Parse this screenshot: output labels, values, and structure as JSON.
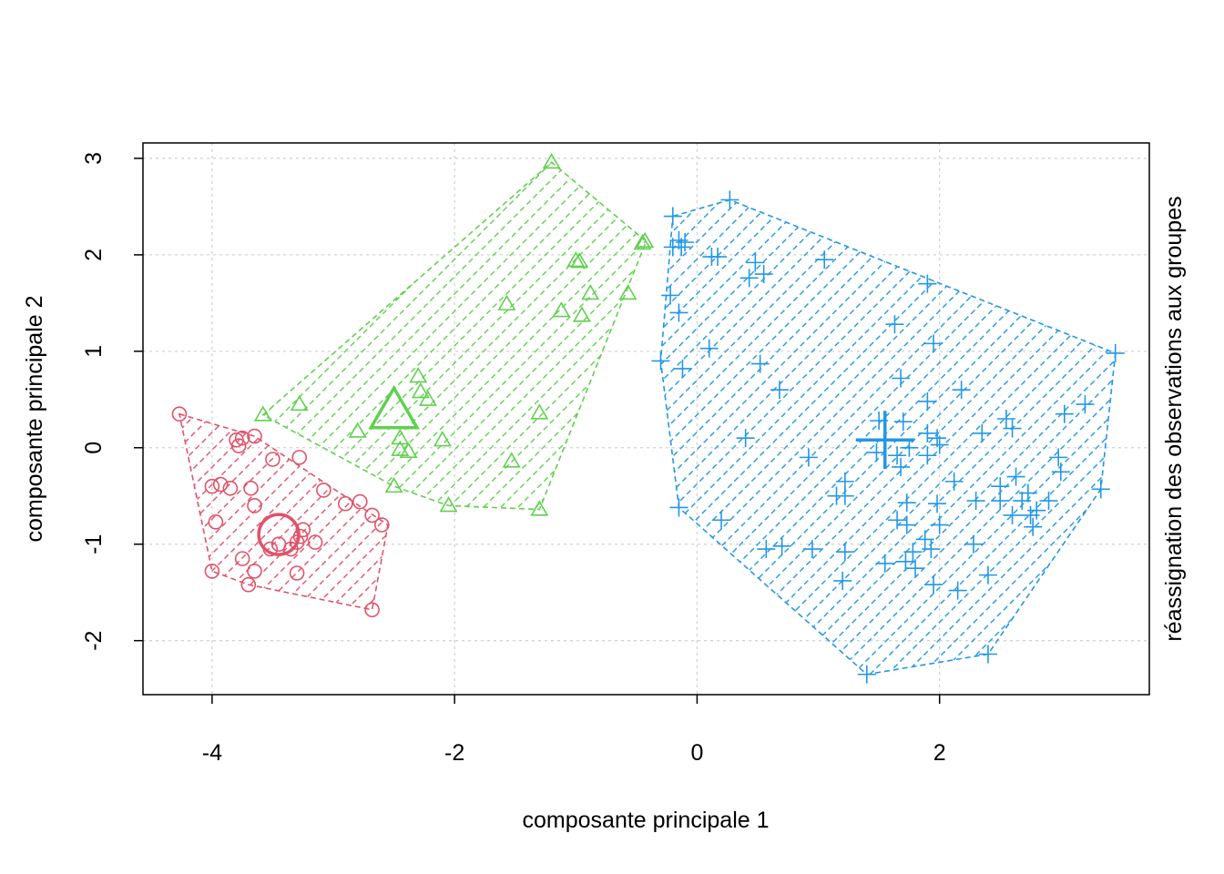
{
  "chart_data": {
    "type": "scatter",
    "title": "",
    "xlabel": "composante principale 1",
    "ylabel": "composante principale 2",
    "side_label": "réassignation des observations aux groupes",
    "xlim": [
      -4.57,
      3.73
    ],
    "ylim": [
      -2.56,
      3.16
    ],
    "xticks": [
      -4,
      -2,
      0,
      2
    ],
    "yticks": [
      -2,
      -1,
      0,
      1,
      2,
      3
    ],
    "xtick_labels": [
      "-4",
      "-2",
      "0",
      "2"
    ],
    "ytick_labels": [
      "-2",
      "-1",
      "0",
      "1",
      "2",
      "3"
    ],
    "grid": true,
    "series": [
      {
        "color": "#DF536B",
        "marker": "circle",
        "centroid": [
          -3.45,
          -0.9
        ],
        "hull": [
          [
            -4.27,
            0.35
          ],
          [
            -3.65,
            0.12
          ],
          [
            -2.55,
            -0.8
          ],
          [
            -2.68,
            -1.68
          ],
          [
            -3.7,
            -1.42
          ],
          [
            -4.0,
            -1.28
          ]
        ],
        "points": [
          [
            -4.27,
            0.35
          ],
          [
            -3.8,
            0.08
          ],
          [
            -3.75,
            0.1
          ],
          [
            -3.65,
            0.12
          ],
          [
            -3.78,
            0.02
          ],
          [
            -3.5,
            -0.12
          ],
          [
            -3.28,
            -0.1
          ],
          [
            -4.0,
            -0.4
          ],
          [
            -3.93,
            -0.38
          ],
          [
            -3.85,
            -0.42
          ],
          [
            -3.68,
            -0.42
          ],
          [
            -3.08,
            -0.44
          ],
          [
            -2.9,
            -0.58
          ],
          [
            -2.78,
            -0.56
          ],
          [
            -3.65,
            -0.6
          ],
          [
            -3.97,
            -0.77
          ],
          [
            -2.68,
            -0.7
          ],
          [
            -2.6,
            -0.8
          ],
          [
            -3.25,
            -0.85
          ],
          [
            -3.27,
            -0.92
          ],
          [
            -3.3,
            -0.98
          ],
          [
            -3.15,
            -0.98
          ],
          [
            -3.45,
            -1.0
          ],
          [
            -3.35,
            -1.05
          ],
          [
            -3.75,
            -1.15
          ],
          [
            -3.52,
            -1.05
          ],
          [
            -3.65,
            -1.28
          ],
          [
            -4.0,
            -1.28
          ],
          [
            -3.3,
            -1.3
          ],
          [
            -3.7,
            -1.42
          ],
          [
            -2.68,
            -1.68
          ]
        ]
      },
      {
        "color": "#61D04F",
        "marker": "triangle",
        "centroid": [
          -2.5,
          0.38
        ],
        "hull": [
          [
            -3.58,
            0.34
          ],
          [
            -1.2,
            2.96
          ],
          [
            -0.42,
            2.14
          ],
          [
            -1.3,
            -0.64
          ],
          [
            -2.05,
            -0.6
          ],
          [
            -2.5,
            -0.4
          ]
        ],
        "points": [
          [
            -1.2,
            2.96
          ],
          [
            -0.45,
            2.12
          ],
          [
            -0.43,
            2.14
          ],
          [
            -1.0,
            1.94
          ],
          [
            -0.97,
            1.93
          ],
          [
            -0.88,
            1.6
          ],
          [
            -0.57,
            1.6
          ],
          [
            -1.57,
            1.49
          ],
          [
            -1.12,
            1.42
          ],
          [
            -0.95,
            1.37
          ],
          [
            -2.3,
            0.74
          ],
          [
            -2.28,
            0.58
          ],
          [
            -2.22,
            0.5
          ],
          [
            -3.28,
            0.45
          ],
          [
            -3.58,
            0.34
          ],
          [
            -1.3,
            0.36
          ],
          [
            -2.8,
            0.17
          ],
          [
            -2.45,
            0.1
          ],
          [
            -2.1,
            0.08
          ],
          [
            -2.45,
            -0.02
          ],
          [
            -2.38,
            -0.04
          ],
          [
            -1.53,
            -0.14
          ],
          [
            -2.5,
            -0.4
          ],
          [
            -2.05,
            -0.6
          ],
          [
            -1.3,
            -0.64
          ]
        ]
      },
      {
        "color": "#2297E6",
        "marker": "plus",
        "centroid": [
          1.55,
          0.08
        ],
        "hull": [
          [
            -0.2,
            2.4
          ],
          [
            0.27,
            2.57
          ],
          [
            3.45,
            0.98
          ],
          [
            3.33,
            -0.43
          ],
          [
            2.4,
            -2.14
          ],
          [
            1.4,
            -2.35
          ],
          [
            -0.15,
            -0.62
          ],
          [
            -0.3,
            0.9
          ]
        ],
        "points": [
          [
            0.27,
            2.57
          ],
          [
            -0.2,
            2.4
          ],
          [
            -0.15,
            2.15
          ],
          [
            -0.2,
            2.08
          ],
          [
            -0.13,
            2.08
          ],
          [
            -0.1,
            2.13
          ],
          [
            0.12,
            1.98
          ],
          [
            0.17,
            1.98
          ],
          [
            0.48,
            1.92
          ],
          [
            0.55,
            1.8
          ],
          [
            0.43,
            1.76
          ],
          [
            1.05,
            1.95
          ],
          [
            1.9,
            1.7
          ],
          [
            -0.22,
            1.58
          ],
          [
            -0.15,
            1.4
          ],
          [
            1.63,
            1.28
          ],
          [
            0.1,
            1.03
          ],
          [
            1.95,
            1.08
          ],
          [
            -0.3,
            0.9
          ],
          [
            3.45,
            0.98
          ],
          [
            -0.12,
            0.82
          ],
          [
            0.52,
            0.87
          ],
          [
            1.68,
            0.72
          ],
          [
            0.68,
            0.6
          ],
          [
            2.18,
            0.6
          ],
          [
            1.9,
            0.48
          ],
          [
            3.2,
            0.45
          ],
          [
            3.03,
            0.35
          ],
          [
            1.5,
            0.28
          ],
          [
            1.7,
            0.27
          ],
          [
            2.55,
            0.3
          ],
          [
            2.6,
            0.2
          ],
          [
            2.35,
            0.15
          ],
          [
            1.9,
            0.15
          ],
          [
            1.98,
            0.1
          ],
          [
            0.4,
            0.1
          ],
          [
            2.0,
            0.03
          ],
          [
            1.75,
            0.0
          ],
          [
            1.48,
            -0.05
          ],
          [
            1.65,
            -0.08
          ],
          [
            1.9,
            -0.08
          ],
          [
            0.92,
            -0.1
          ],
          [
            2.98,
            -0.1
          ],
          [
            1.68,
            -0.2
          ],
          [
            3.0,
            -0.25
          ],
          [
            2.63,
            -0.3
          ],
          [
            1.22,
            -0.35
          ],
          [
            2.12,
            -0.35
          ],
          [
            2.5,
            -0.4
          ],
          [
            3.33,
            -0.43
          ],
          [
            1.15,
            -0.5
          ],
          [
            1.22,
            -0.5
          ],
          [
            2.73,
            -0.47
          ],
          [
            2.68,
            -0.55
          ],
          [
            2.3,
            -0.55
          ],
          [
            2.5,
            -0.55
          ],
          [
            2.9,
            -0.55
          ],
          [
            1.73,
            -0.57
          ],
          [
            1.98,
            -0.58
          ],
          [
            -0.15,
            -0.62
          ],
          [
            2.8,
            -0.65
          ],
          [
            0.2,
            -0.75
          ],
          [
            1.65,
            -0.75
          ],
          [
            2.6,
            -0.7
          ],
          [
            2.75,
            -0.7
          ],
          [
            1.73,
            -0.8
          ],
          [
            2.77,
            -0.82
          ],
          [
            2.0,
            -0.8
          ],
          [
            0.57,
            -1.05
          ],
          [
            0.7,
            -1.02
          ],
          [
            0.95,
            -1.05
          ],
          [
            1.88,
            -0.95
          ],
          [
            1.93,
            -1.05
          ],
          [
            2.28,
            -1.0
          ],
          [
            1.22,
            -1.08
          ],
          [
            1.78,
            -1.08
          ],
          [
            1.55,
            -1.2
          ],
          [
            1.72,
            -1.18
          ],
          [
            1.8,
            -1.25
          ],
          [
            2.4,
            -1.32
          ],
          [
            1.2,
            -1.38
          ],
          [
            1.95,
            -1.42
          ],
          [
            2.15,
            -1.48
          ],
          [
            2.4,
            -2.14
          ],
          [
            1.4,
            -2.35
          ]
        ]
      }
    ]
  }
}
